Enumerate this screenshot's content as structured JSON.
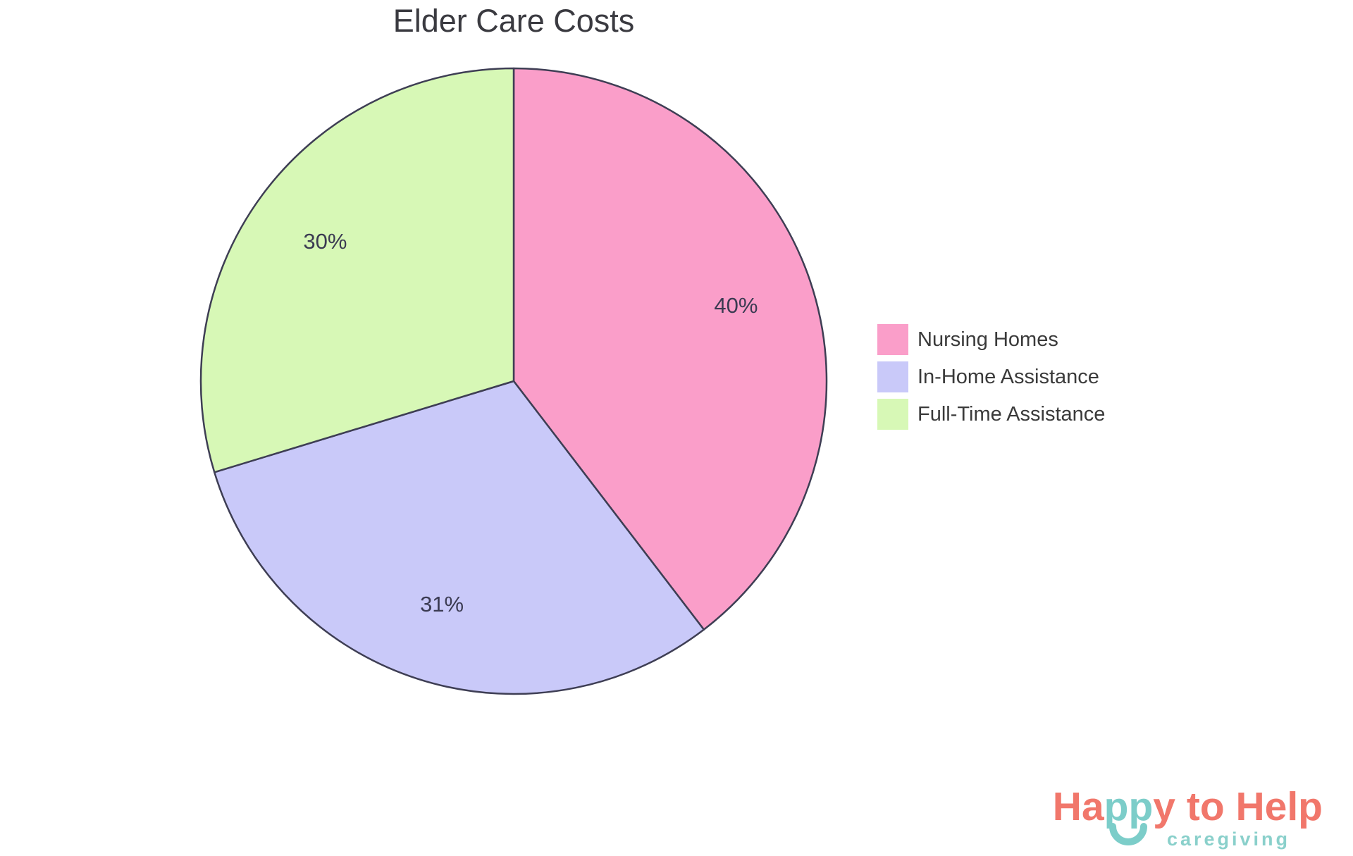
{
  "chart_data": {
    "type": "pie",
    "title": "Elder Care Costs",
    "labels": [
      "Nursing Homes",
      "In-Home Assistance",
      "Full-Time Assistance"
    ],
    "values": [
      40,
      31,
      30
    ],
    "percent_labels": [
      "40%",
      "31%",
      "30%"
    ],
    "colors": [
      "#FA9EC9",
      "#C9C9F9",
      "#D7F8B6"
    ],
    "edge_color": "#3E3E54",
    "percent_label_color": "#3B3B52",
    "start_angle": "12-oclock",
    "direction": "clockwise",
    "legend_position": "right",
    "grid": false
  },
  "branding": {
    "name_segments": [
      {
        "text": "Ha",
        "color_key": "coral"
      },
      {
        "text": "pp",
        "color_key": "teal"
      },
      {
        "text": "y to Help",
        "color_key": "coral"
      }
    ],
    "tagline": "caregiving",
    "colors": {
      "coral": "#F1776B",
      "teal": "#7CCDC9",
      "tagline_teal": "#8AD0CB"
    }
  }
}
